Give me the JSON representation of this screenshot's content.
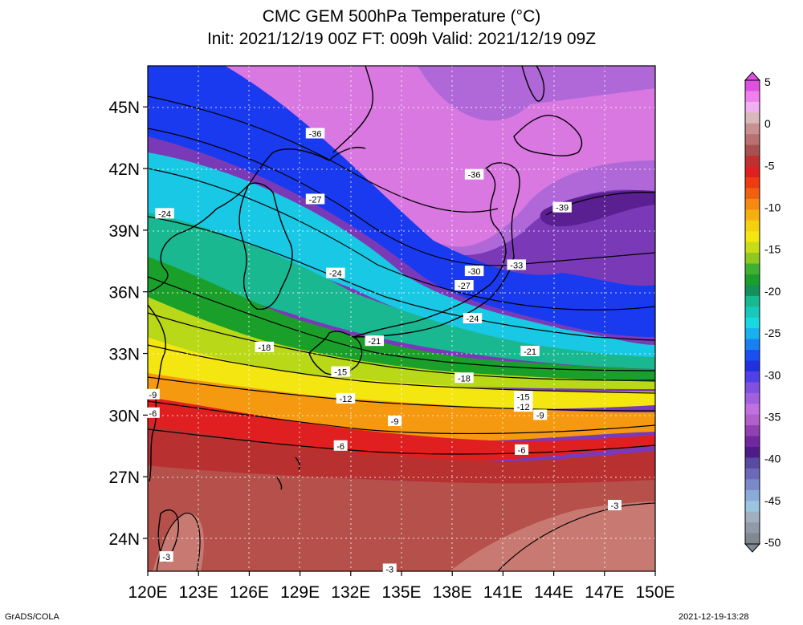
{
  "title_line1": "CMC GEM 500hPa Temperature (°C)",
  "title_line2": "Init: 2021/12/19 00Z  FT: 009h  Valid: 2021/12/19 09Z",
  "lat_labels": [
    "45N",
    "42N",
    "39N",
    "36N",
    "33N",
    "30N",
    "27N",
    "24N"
  ],
  "lon_labels": [
    "120E",
    "123E",
    "126E",
    "129E",
    "132E",
    "135E",
    "138E",
    "141E",
    "144E",
    "147E",
    "150E"
  ],
  "colorbar_labels": [
    "5",
    "0",
    "-5",
    "-10",
    "-15",
    "-20",
    "-25",
    "-30",
    "-35",
    "-40",
    "-45",
    "-50"
  ],
  "colors": {
    "warm_brown": "#b5504a",
    "red": "#e02020",
    "orange": "#f59a10",
    "yellow": "#f4e610",
    "green": "#1aa02a",
    "cyan": "#1ad0e0",
    "blue": "#1840f0",
    "magenta": "#d070e0",
    "purple": "#6a2aa8"
  },
  "contour_labels": [
    {
      "text": "-36",
      "lon": 129.9,
      "lat": 43.7
    },
    {
      "text": "-36",
      "lon": 139.3,
      "lat": 41.7
    },
    {
      "text": "-39",
      "lon": 144.5,
      "lat": 40.1
    },
    {
      "text": "-27",
      "lon": 129.9,
      "lat": 40.5
    },
    {
      "text": "-24",
      "lon": 121.0,
      "lat": 39.8
    },
    {
      "text": "-24",
      "lon": 131.1,
      "lat": 36.9
    },
    {
      "text": "-33",
      "lon": 141.8,
      "lat": 37.3
    },
    {
      "text": "-30",
      "lon": 139.3,
      "lat": 37.0
    },
    {
      "text": "-27",
      "lon": 138.7,
      "lat": 36.3
    },
    {
      "text": "-24",
      "lon": 139.2,
      "lat": 34.7
    },
    {
      "text": "-21",
      "lon": 133.4,
      "lat": 33.6
    },
    {
      "text": "-21",
      "lon": 142.6,
      "lat": 33.1
    },
    {
      "text": "-18",
      "lon": 126.9,
      "lat": 33.3
    },
    {
      "text": "-18",
      "lon": 138.7,
      "lat": 31.8
    },
    {
      "text": "-15",
      "lon": 131.4,
      "lat": 32.1
    },
    {
      "text": "-15",
      "lon": 142.2,
      "lat": 30.9
    },
    {
      "text": "-12",
      "lon": 131.7,
      "lat": 30.8
    },
    {
      "text": "-12",
      "lon": 142.2,
      "lat": 30.4
    },
    {
      "text": "-9",
      "lon": 120.3,
      "lat": 31.0
    },
    {
      "text": "-9",
      "lon": 134.6,
      "lat": 29.7
    },
    {
      "text": "-9",
      "lon": 143.2,
      "lat": 30.0
    },
    {
      "text": "-6",
      "lon": 120.3,
      "lat": 30.1
    },
    {
      "text": "-6",
      "lon": 131.4,
      "lat": 28.5
    },
    {
      "text": "-6",
      "lon": 142.1,
      "lat": 28.3
    },
    {
      "text": "-3",
      "lon": 147.6,
      "lat": 25.6
    },
    {
      "text": "-3",
      "lon": 121.1,
      "lat": 23.1
    },
    {
      "text": "-3",
      "lon": 134.3,
      "lat": 22.5
    }
  ],
  "footer_left": "GrADS/COLA",
  "footer_right": "2021-12-19-13:28"
}
